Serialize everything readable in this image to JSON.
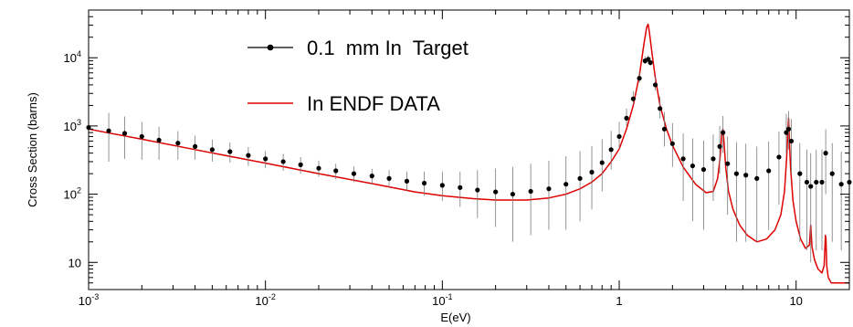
{
  "chart_data": {
    "type": "scatter",
    "title": "",
    "xlabel": "E(eV)",
    "ylabel": "Cross Section (barns)",
    "x_scale": "log",
    "y_scale": "log",
    "xlim": [
      0.001,
      20
    ],
    "ylim": [
      4,
      50000
    ],
    "grid": false,
    "legend_position": "top-left",
    "x_ticks": [
      {
        "value": 0.001,
        "base": "10",
        "exp": "-3"
      },
      {
        "value": 0.01,
        "base": "10",
        "exp": "-2"
      },
      {
        "value": 0.1,
        "base": "10",
        "exp": "-1"
      },
      {
        "value": 1,
        "text": "1"
      },
      {
        "value": 10,
        "text": "10"
      }
    ],
    "y_ticks": [
      {
        "value": 10,
        "text": "10"
      },
      {
        "value": 100,
        "base": "10",
        "exp": "2"
      },
      {
        "value": 1000,
        "base": "10",
        "exp": "3"
      },
      {
        "value": 10000,
        "base": "10",
        "exp": "4"
      }
    ],
    "series": [
      {
        "name": "0.1  mm In  Target",
        "style": "points-with-error-bars",
        "color": "#000000",
        "x": [
          0.001,
          0.0013,
          0.0016,
          0.002,
          0.0025,
          0.0032,
          0.004,
          0.005,
          0.0063,
          0.008,
          0.01,
          0.0126,
          0.0158,
          0.02,
          0.025,
          0.0316,
          0.04,
          0.05,
          0.063,
          0.079,
          0.1,
          0.126,
          0.158,
          0.2,
          0.25,
          0.316,
          0.4,
          0.5,
          0.6,
          0.7,
          0.8,
          0.9,
          1.0,
          1.1,
          1.2,
          1.3,
          1.4,
          1.46,
          1.5,
          1.6,
          1.7,
          1.8,
          2.0,
          2.3,
          2.6,
          3.0,
          3.4,
          3.7,
          3.86,
          4.1,
          4.6,
          5.2,
          6.0,
          7.0,
          8.0,
          8.8,
          9.07,
          9.4,
          10.5,
          11.5,
          12.1,
          13.0,
          14.0,
          14.7,
          16.0,
          18.0,
          20.0
        ],
        "y": [
          950,
          850,
          780,
          700,
          620,
          560,
          500,
          450,
          420,
          370,
          330,
          300,
          270,
          240,
          220,
          200,
          185,
          170,
          155,
          145,
          135,
          125,
          115,
          108,
          100,
          110,
          120,
          140,
          170,
          210,
          290,
          450,
          700,
          1300,
          2500,
          5000,
          9000,
          9500,
          8500,
          4000,
          1800,
          900,
          550,
          330,
          260,
          230,
          330,
          500,
          800,
          280,
          200,
          190,
          170,
          220,
          350,
          800,
          900,
          600,
          200,
          150,
          130,
          150,
          150,
          400,
          200,
          140,
          150
        ],
        "y_err_low": [
          600,
          550,
          450,
          380,
          300,
          240,
          180,
          150,
          130,
          110,
          90,
          80,
          70,
          60,
          55,
          50,
          45,
          45,
          45,
          50,
          55,
          60,
          70,
          75,
          80,
          85,
          90,
          110,
          130,
          150,
          180,
          220,
          250,
          300,
          400,
          700,
          900,
          800,
          900,
          700,
          500,
          400,
          300,
          250,
          220,
          200,
          250,
          300,
          400,
          230,
          180,
          170,
          150,
          190,
          280,
          400,
          450,
          400,
          180,
          135,
          120,
          135,
          135,
          300,
          180,
          125,
          135
        ],
        "y_err_high": [
          800,
          700,
          600,
          450,
          350,
          280,
          220,
          180,
          150,
          120,
          100,
          90,
          80,
          70,
          60,
          55,
          50,
          55,
          60,
          70,
          80,
          90,
          110,
          130,
          150,
          170,
          190,
          220,
          260,
          300,
          350,
          400,
          450,
          500,
          700,
          1200,
          1500,
          1400,
          1500,
          1200,
          900,
          700,
          550,
          450,
          400,
          380,
          420,
          500,
          600,
          420,
          380,
          360,
          330,
          370,
          480,
          700,
          750,
          650,
          360,
          300,
          270,
          300,
          300,
          500,
          360,
          280,
          300
        ]
      },
      {
        "name": "In ENDF DATA",
        "style": "line",
        "color": "#dd0000",
        "x": [
          0.001,
          0.002,
          0.004,
          0.007,
          0.01,
          0.02,
          0.04,
          0.07,
          0.1,
          0.15,
          0.2,
          0.3,
          0.4,
          0.5,
          0.6,
          0.7,
          0.8,
          0.9,
          1.0,
          1.1,
          1.2,
          1.3,
          1.38,
          1.43,
          1.457,
          1.48,
          1.53,
          1.6,
          1.7,
          1.85,
          2.0,
          2.3,
          2.7,
          3.1,
          3.4,
          3.6,
          3.72,
          3.8,
          3.86,
          3.92,
          4.0,
          4.15,
          4.4,
          4.8,
          5.3,
          6.0,
          6.8,
          7.6,
          8.2,
          8.6,
          8.85,
          9.0,
          9.07,
          9.15,
          9.3,
          9.6,
          10.0,
          10.6,
          11.3,
          11.9,
          12.1,
          12.3,
          12.7,
          13.3,
          14.0,
          14.4,
          14.65,
          14.75,
          14.9,
          15.2,
          15.8,
          16.8,
          18.0,
          20.0
        ],
        "y": [
          900,
          640,
          450,
          340,
          285,
          200,
          143,
          108,
          95,
          86,
          82,
          82,
          88,
          100,
          120,
          150,
          200,
          300,
          460,
          900,
          2000,
          5500,
          16000,
          28000,
          31000,
          24000,
          12000,
          5000,
          2000,
          900,
          520,
          250,
          140,
          105,
          110,
          170,
          350,
          750,
          900,
          550,
          250,
          110,
          60,
          35,
          25,
          20,
          22,
          30,
          50,
          110,
          350,
          900,
          1300,
          700,
          250,
          80,
          40,
          22,
          16,
          18,
          35,
          17,
          11,
          8,
          7,
          9,
          25,
          22,
          9,
          6,
          5,
          5,
          5,
          5
        ]
      }
    ]
  }
}
